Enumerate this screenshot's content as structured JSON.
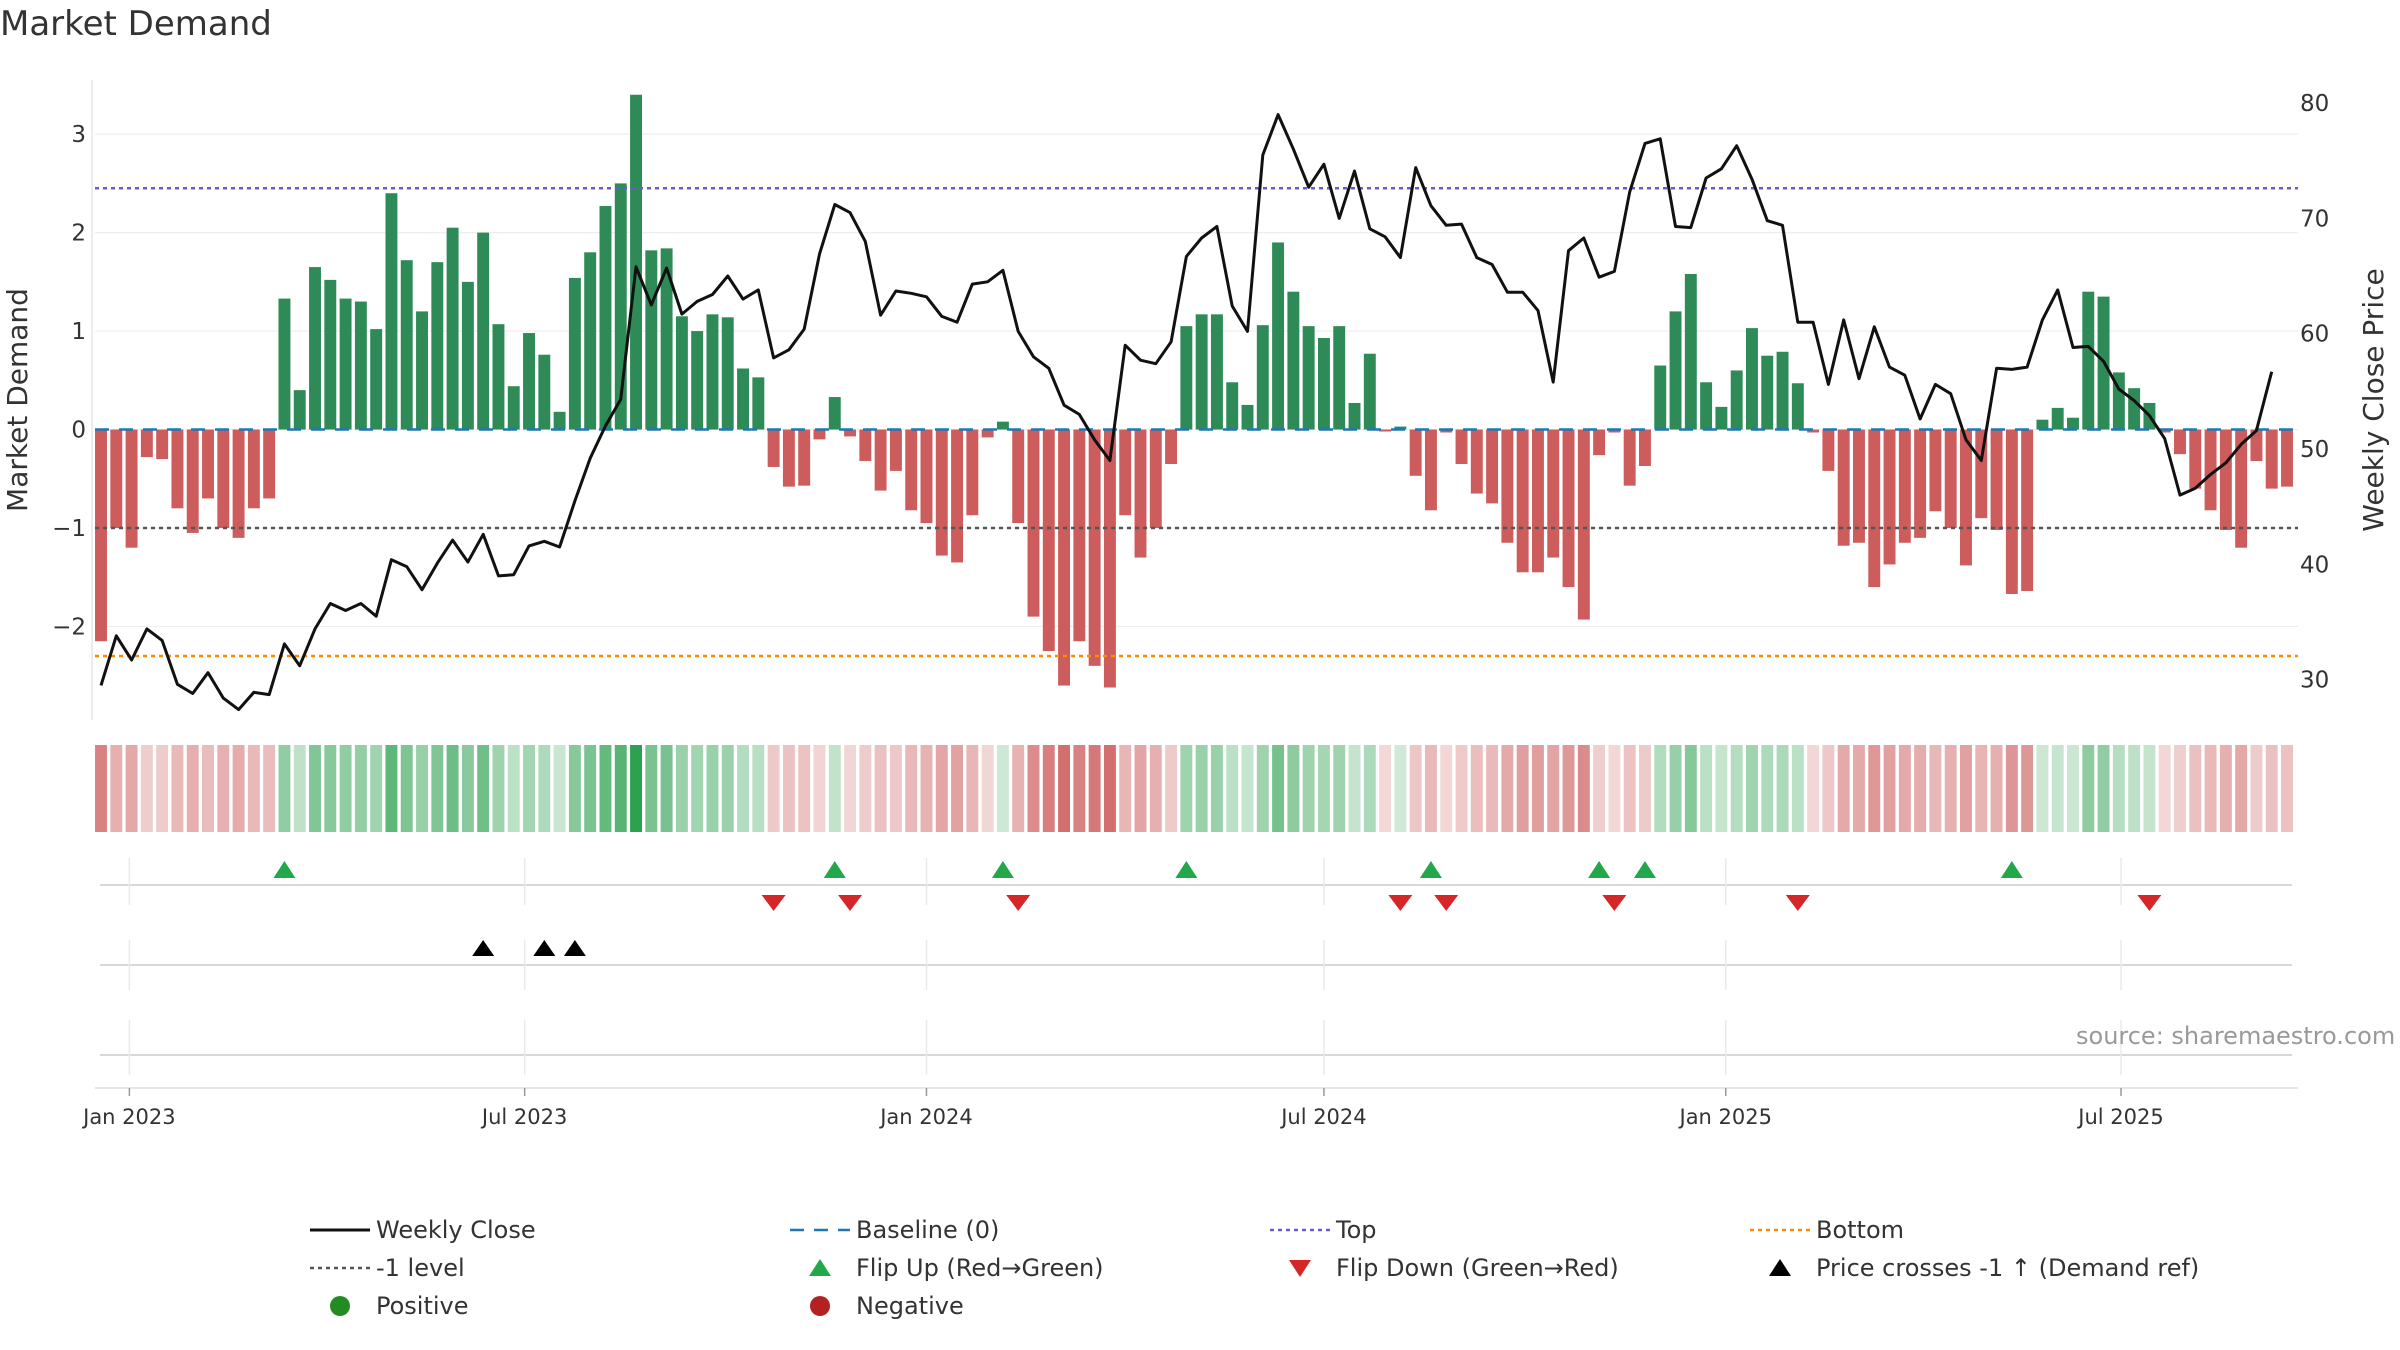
{
  "title": "Market Demand",
  "source": "source: sharemaestro.com",
  "colors": {
    "positive": "#2e8b57",
    "negative": "#cd5c5c",
    "line": "#111111",
    "baseline": "#1f77b4",
    "top": "#6a5acd",
    "bottom": "#ff8c00",
    "minus1": "#555555",
    "flip_up": "#22a84a",
    "flip_down": "#d62728",
    "cross": "#000000"
  },
  "chart_data": {
    "type": "bar+line",
    "xlabel": "",
    "ylabel_left": "Market Demand",
    "ylabel_right": "Weekly Close Price",
    "ylim_left": [
      -2.95,
      3.55
    ],
    "ylim_right": [
      26.5,
      82
    ],
    "left_ticks": [
      3,
      2,
      1,
      0,
      -1,
      -2
    ],
    "left_tick_labels": [
      "3",
      "2",
      "1",
      "0",
      "−1",
      "−2"
    ],
    "right_ticks": [
      80,
      70,
      60,
      50,
      40,
      30
    ],
    "right_tick_labels": [
      "80",
      "70",
      "60",
      "50",
      "40",
      "30"
    ],
    "x_start": "2022-12-19",
    "interval_days": 7,
    "x_ticks": [
      {
        "label": "Jan 2023",
        "date": "2023-01-01"
      },
      {
        "label": "Jul 2023",
        "date": "2023-07-01"
      },
      {
        "label": "Jan 2024",
        "date": "2024-01-01"
      },
      {
        "label": "Jul 2024",
        "date": "2024-07-01"
      },
      {
        "label": "Jan 2025",
        "date": "2025-01-01"
      },
      {
        "label": "Jul 2025",
        "date": "2025-07-01"
      }
    ],
    "reference_lines": {
      "baseline": 0,
      "minus1": -1,
      "top": 2.45,
      "bottom": -2.3
    },
    "demand": [
      -2.15,
      -1.0,
      -1.2,
      -0.28,
      -0.3,
      -0.8,
      -1.05,
      -0.7,
      -1.0,
      -1.1,
      -0.8,
      -0.7,
      1.33,
      0.4,
      1.65,
      1.52,
      1.33,
      1.3,
      1.02,
      2.4,
      1.72,
      1.2,
      1.7,
      2.05,
      1.5,
      2.0,
      1.07,
      0.44,
      0.98,
      0.76,
      0.18,
      1.54,
      1.8,
      2.27,
      2.5,
      3.4,
      1.82,
      1.84,
      1.15,
      1.0,
      1.17,
      1.14,
      0.62,
      0.53,
      -0.38,
      -0.58,
      -0.57,
      -0.1,
      0.33,
      -0.07,
      -0.32,
      -0.62,
      -0.42,
      -0.82,
      -0.95,
      -1.28,
      -1.35,
      -0.87,
      -0.08,
      0.08,
      -0.95,
      -1.9,
      -2.25,
      -2.6,
      -2.15,
      -2.4,
      -2.62,
      -0.87,
      -1.3,
      -1.0,
      -0.35,
      1.05,
      1.17,
      1.17,
      0.48,
      0.25,
      1.06,
      1.9,
      1.4,
      1.05,
      0.93,
      1.05,
      0.27,
      0.77,
      -0.02,
      0.03,
      -0.47,
      -0.82,
      -0.03,
      -0.35,
      -0.65,
      -0.75,
      -1.15,
      -1.45,
      -1.45,
      -1.3,
      -1.6,
      -1.93,
      -0.26,
      -0.03,
      -0.57,
      -0.37,
      0.65,
      1.2,
      1.58,
      0.48,
      0.23,
      0.6,
      1.03,
      0.75,
      0.79,
      0.47,
      -0.03,
      -0.42,
      -1.18,
      -1.15,
      -1.6,
      -1.37,
      -1.15,
      -1.1,
      -0.83,
      -1.0,
      -1.38,
      -0.9,
      -1.02,
      -1.67,
      -1.64,
      0.1,
      0.22,
      0.12,
      1.4,
      1.35,
      0.58,
      0.42,
      0.27,
      -0.03,
      -0.25,
      -0.6,
      -0.82,
      -1.02,
      -1.2,
      -0.32,
      -0.6,
      -0.58
    ],
    "close": [
      29.5,
      33.8,
      31.7,
      34.4,
      33.4,
      29.6,
      28.8,
      30.6,
      28.4,
      27.4,
      28.9,
      28.7,
      33.1,
      31.2,
      34.4,
      36.6,
      36.0,
      36.6,
      35.5,
      40.4,
      39.8,
      37.8,
      40.1,
      42.1,
      40.2,
      42.6,
      39.0,
      39.1,
      41.6,
      42.0,
      41.5,
      45.5,
      49.2,
      52.0,
      54.3,
      65.8,
      62.5,
      65.7,
      61.7,
      62.8,
      63.4,
      65.0,
      63.0,
      63.8,
      57.9,
      58.6,
      60.4,
      66.9,
      71.2,
      70.5,
      68.0,
      61.6,
      63.7,
      63.5,
      63.2,
      61.5,
      61.0,
      64.3,
      64.5,
      65.5,
      60.2,
      58.0,
      57.0,
      53.8,
      53.0,
      50.8,
      49.0,
      59.0,
      57.7,
      57.4,
      59.3,
      66.7,
      68.3,
      69.3,
      62.4,
      60.2,
      75.5,
      79.0,
      76.0,
      72.7,
      74.7,
      70.0,
      74.1,
      69.1,
      68.4,
      66.6,
      74.4,
      71.1,
      69.4,
      69.5,
      66.6,
      66.0,
      63.6,
      63.6,
      62.0,
      55.8,
      67.2,
      68.3,
      64.9,
      65.4,
      72.3,
      76.5,
      76.9,
      69.3,
      69.2,
      73.5,
      74.3,
      76.3,
      73.4,
      69.8,
      69.4,
      61.0,
      61.0,
      55.6,
      61.2,
      56.1,
      60.6,
      57.1,
      56.4,
      52.6,
      55.6,
      54.8,
      50.8,
      49.0,
      57.0,
      56.9,
      57.1,
      61.2,
      63.8,
      58.8,
      58.9,
      57.6,
      55.2,
      54.2,
      52.9,
      50.9,
      46.0,
      46.6,
      47.8,
      48.8,
      50.4,
      51.6,
      56.7
    ],
    "heat_strip": "weekly demand intensity (same series as bars)",
    "flip_up_indices": [
      12,
      48,
      59,
      71,
      87,
      98,
      101,
      125
    ],
    "flip_down_indices": [
      44,
      49,
      60,
      85,
      88,
      99,
      111,
      134
    ],
    "cross_indices": [
      25,
      29,
      31
    ],
    "legend": [
      {
        "label": "Weekly Close",
        "symbol": "line"
      },
      {
        "label": "Baseline (0)",
        "symbol": "dashed"
      },
      {
        "label": "Top",
        "symbol": "dotted-top"
      },
      {
        "label": "Bottom",
        "symbol": "dotted-bottom"
      },
      {
        "label": "-1 level",
        "symbol": "dotted-minus1"
      },
      {
        "label": "Flip Up (Red→Green)",
        "symbol": "tri-up"
      },
      {
        "label": "Flip Down (Green→Red)",
        "symbol": "tri-down"
      },
      {
        "label": "Price crosses -1 ↑ (Demand ref)",
        "symbol": "tri-black"
      },
      {
        "label": "Positive",
        "symbol": "dot-green"
      },
      {
        "label": "Negative",
        "symbol": "dot-red"
      }
    ]
  }
}
